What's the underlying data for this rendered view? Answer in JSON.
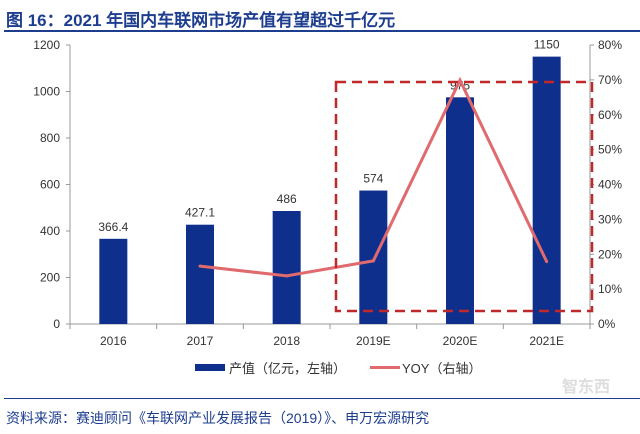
{
  "title": "图 16：2021 年国内车联网市场产值有望超过千亿元",
  "source": "资料来源：赛迪顾问《车联网产业发展报告（2019）》、申万宏源研究",
  "watermark": "智东西",
  "colors": {
    "bar": "#0f2f8c",
    "line": "#e06a6e",
    "box": "#c0282a",
    "title": "#1d3d8f"
  },
  "chart_data": {
    "type": "bar+line",
    "categories": [
      "2016",
      "2017",
      "2018",
      "2019E",
      "2020E",
      "2021E"
    ],
    "series": [
      {
        "name": "产值（亿元，左轴）",
        "type": "bar",
        "axis": "left",
        "values": [
          366.4,
          427.1,
          486,
          574,
          975,
          1150
        ],
        "labels": [
          "366.4",
          "427.1",
          "486",
          "574",
          "975",
          "1150"
        ]
      },
      {
        "name": "YOY（右轴）",
        "type": "line",
        "axis": "right",
        "values": [
          null,
          16.6,
          13.8,
          18.1,
          69.9,
          17.9
        ]
      }
    ],
    "left_axis": {
      "ylim": [
        0,
        1200
      ],
      "ticks": [
        "0",
        "200",
        "400",
        "600",
        "800",
        "1000",
        "1200"
      ]
    },
    "right_axis": {
      "ylim": [
        0,
        80
      ],
      "ticks": [
        "0%",
        "10%",
        "20%",
        "30%",
        "40%",
        "50%",
        "60%",
        "70%",
        "80%"
      ]
    },
    "legend_position": "bottom",
    "annotation": "dashed box highlighting 2019E–2021E"
  }
}
